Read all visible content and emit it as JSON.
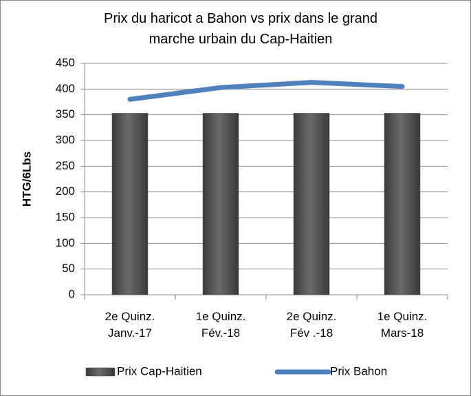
{
  "chart_data": {
    "type": "bar_line",
    "title": "Prix du haricot a Bahon vs prix dans le grand\nmarche urbain du Cap-Haitien",
    "y_label": "HTG/6Lbs",
    "categories": [
      "2e Quinz.\nJanv.-17",
      "1e Quinz.\nFév.-18",
      "2e Quinz.\nFév .-18",
      "1e Quinz.\nMars-18"
    ],
    "series": [
      {
        "name": "Prix Cap-Haitien",
        "type": "bar",
        "color": "#555555",
        "values": [
          353,
          353,
          353,
          353
        ]
      },
      {
        "name": "Prix Bahon",
        "type": "line",
        "color": "#4f81bd",
        "values": [
          380,
          403,
          413,
          405
        ]
      }
    ],
    "ylim": [
      0,
      450
    ],
    "yticks": [
      0,
      50,
      100,
      150,
      200,
      250,
      300,
      350,
      400,
      450
    ],
    "grid": true,
    "legend": "bottom"
  }
}
